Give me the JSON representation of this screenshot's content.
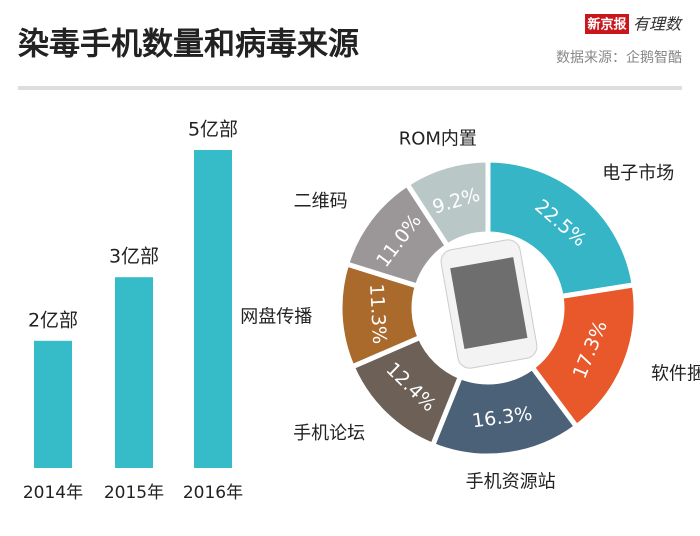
{
  "title": "染毒手机数量和病毒来源",
  "source": "数据来源：企鹅智酷",
  "brand": "新京报",
  "brand_sub": "有理数",
  "chart_data": [
    {
      "type": "bar",
      "categories": [
        "2014年",
        "2015年",
        "2016年"
      ],
      "values": [
        2,
        3,
        5
      ],
      "value_labels": [
        "2亿部",
        "3亿部",
        "5亿部"
      ],
      "color": "#36bcc8"
    },
    {
      "type": "pie",
      "categories": [
        "电子市场",
        "软件捆绑",
        "手机资源站",
        "手机论坛",
        "网盘传播",
        "二维码",
        "ROM内置"
      ],
      "values": [
        22.5,
        17.3,
        16.3,
        12.4,
        11.3,
        11.0,
        9.2
      ],
      "value_labels": [
        "22.5%",
        "17.3%",
        "16.3%",
        "12.4%",
        "11.3%",
        "11.0%",
        "9.2%"
      ],
      "colors": [
        "#36b5c6",
        "#e8582a",
        "#4b6178",
        "#6c6057",
        "#a96a2c",
        "#9b9799",
        "#b9c8c6"
      ]
    }
  ]
}
